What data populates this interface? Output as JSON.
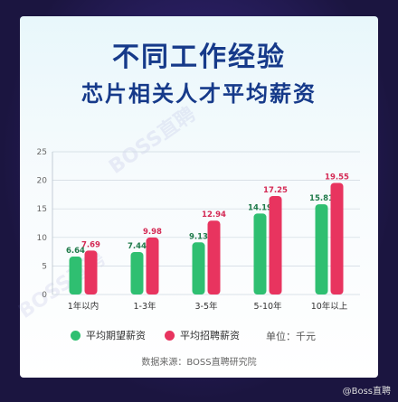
{
  "title": "不同工作经验",
  "subtitle": "芯片相关人才平均薪资",
  "legend": {
    "expected": "平均期望薪资",
    "offered": "平均招聘薪资",
    "unit": "单位：千元"
  },
  "source": "数据来源：BOSS直聘研究院",
  "watermark": "@Boss直聘",
  "diag_watermark": "BOSS直聘",
  "colors": {
    "expected": "#2fbf71",
    "offered": "#e8345f",
    "title": "#163a8a"
  },
  "chart_data": {
    "type": "bar",
    "categories": [
      "1年以内",
      "1-3年",
      "3-5年",
      "5-10年",
      "10年以上"
    ],
    "series": [
      {
        "name": "平均期望薪资",
        "values": [
          6.64,
          7.44,
          9.13,
          14.19,
          15.81
        ]
      },
      {
        "name": "平均招聘薪资",
        "values": [
          7.69,
          9.98,
          12.94,
          17.25,
          19.55
        ]
      }
    ],
    "ylim": [
      0,
      25
    ],
    "yticks": [
      0,
      5,
      10,
      15,
      20,
      25
    ],
    "grid": true
  }
}
